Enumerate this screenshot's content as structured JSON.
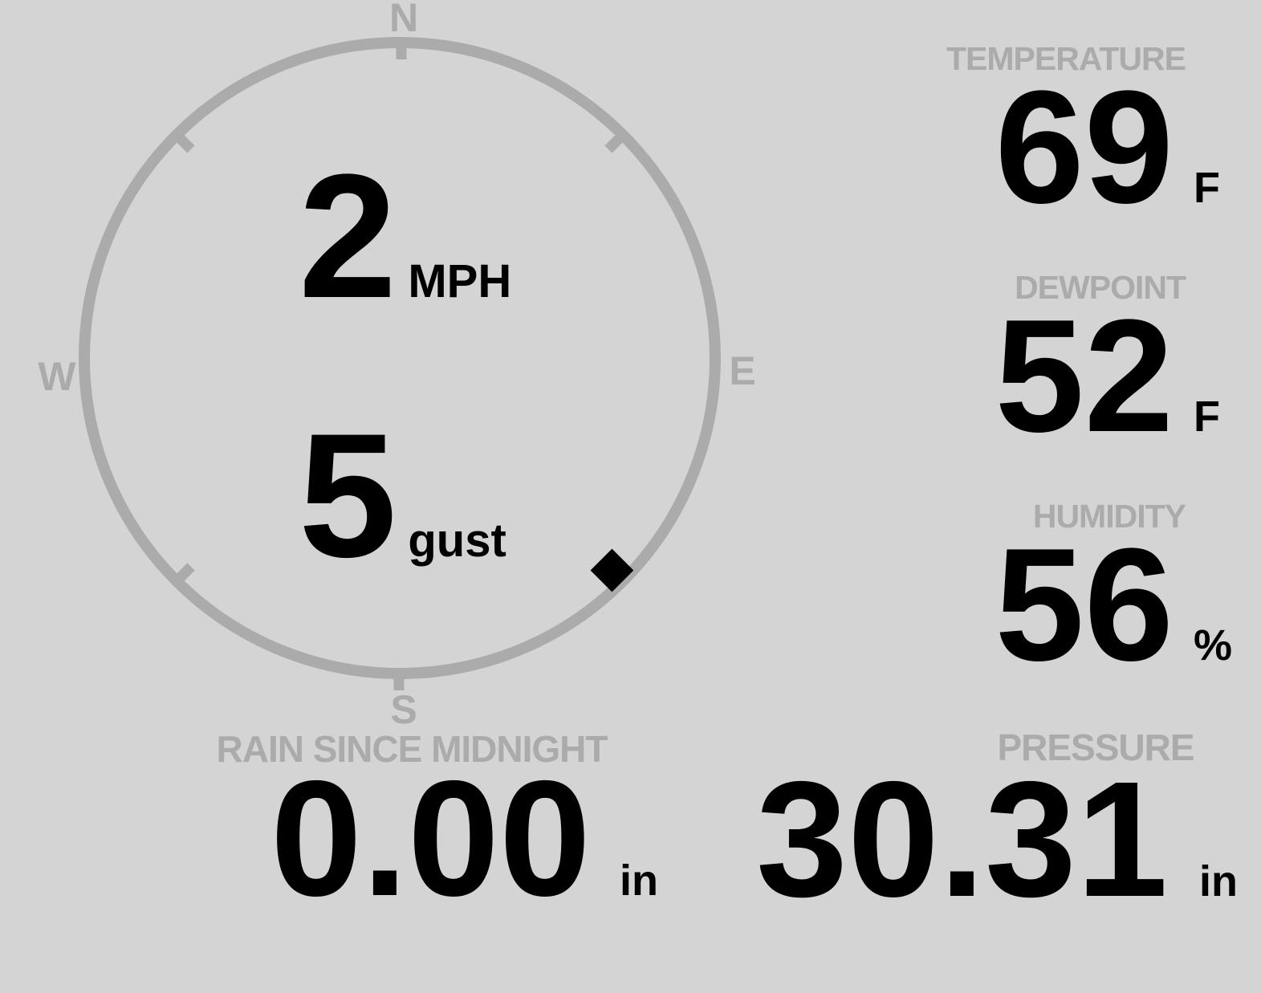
{
  "colors": {
    "background": "#d4d4d4",
    "muted": "#ababab",
    "value": "#000000"
  },
  "wind": {
    "speed": "2",
    "speed_unit": "MPH",
    "gust": "5",
    "gust_unit": "gust",
    "direction_degrees": 135,
    "compass_labels": {
      "north": "N",
      "east": "E",
      "south": "S",
      "west": "W"
    }
  },
  "stats": [
    {
      "id": "temperature",
      "label": "TEMPERATURE",
      "value": "69",
      "unit": "F"
    },
    {
      "id": "dewpoint",
      "label": "DEWPOINT",
      "value": "52",
      "unit": "F"
    },
    {
      "id": "humidity",
      "label": "HUMIDITY",
      "value": "56",
      "unit": "%"
    }
  ],
  "bottom_stats": [
    {
      "id": "rain_since_midnight",
      "label": "RAIN SINCE MIDNIGHT",
      "value": "0.00",
      "unit": "in"
    },
    {
      "id": "pressure",
      "label": "PRESSURE",
      "value": "30.31",
      "unit": "in"
    }
  ]
}
